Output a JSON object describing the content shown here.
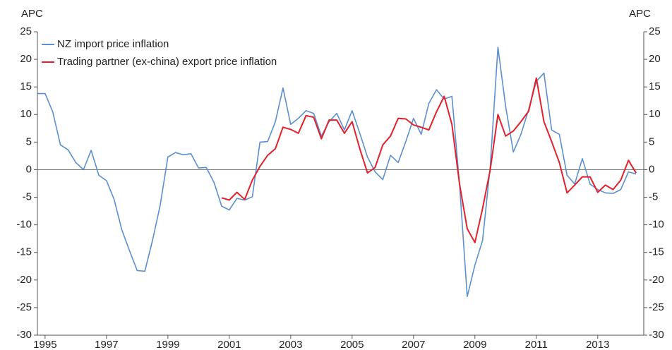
{
  "chart_data": {
    "type": "line",
    "y_label": "APC",
    "y2_label": "APC",
    "x": [
      1994.75,
      1995,
      1995.25,
      1995.5,
      1995.75,
      1996,
      1996.25,
      1996.5,
      1996.75,
      1997,
      1997.25,
      1997.5,
      1997.75,
      1998,
      1998.25,
      1998.5,
      1998.75,
      1999,
      1999.25,
      1999.5,
      1999.75,
      2000,
      2000.25,
      2000.5,
      2000.75,
      2001,
      2001.25,
      2001.5,
      2001.75,
      2002,
      2002.25,
      2002.5,
      2002.75,
      2003,
      2003.25,
      2003.5,
      2003.75,
      2004,
      2004.25,
      2004.5,
      2004.75,
      2005,
      2005.25,
      2005.5,
      2005.75,
      2006,
      2006.25,
      2006.5,
      2006.75,
      2007,
      2007.25,
      2007.5,
      2007.75,
      2008,
      2008.25,
      2008.5,
      2008.75,
      2009,
      2009.25,
      2009.5,
      2009.75,
      2010,
      2010.25,
      2010.5,
      2010.75,
      2011,
      2011.25,
      2011.5,
      2011.75,
      2012,
      2012.25,
      2012.5,
      2012.75,
      2013,
      2013.25,
      2013.5,
      2013.75,
      2014,
      2014.25
    ],
    "series": [
      {
        "name": "NZ import price inflation",
        "color": "#5b8fcf",
        "values": [
          13.8,
          13.8,
          10.5,
          4.5,
          3.6,
          1.3,
          0,
          3.5,
          -1,
          -2,
          -5.4,
          -10.9,
          -14.7,
          -18.3,
          -18.4,
          -12.8,
          -6.4,
          2.3,
          3.1,
          2.7,
          2.9,
          0.3,
          0.4,
          -2.3,
          -6.6,
          -7.3,
          -5.2,
          -5.5,
          -4.9,
          5,
          5.1,
          8.7,
          14.8,
          8.2,
          9.3,
          10.7,
          10.2,
          6.1,
          8.7,
          10.2,
          7.2,
          10.7,
          6.6,
          2.3,
          -0.4,
          -1.8,
          2.6,
          1.3,
          5.1,
          9.3,
          6.4,
          12,
          14.5,
          12.8,
          13.3,
          -2.6,
          -23,
          -17.3,
          -12.8,
          0.6,
          22.2,
          11.5,
          3.2,
          6.4,
          10.9,
          16,
          17.5,
          7.2,
          6.4,
          -1,
          -2.6,
          2,
          -2.6,
          -3.6,
          -4.2,
          -4.3,
          -3.6,
          -0.4,
          -0.8
        ]
      },
      {
        "name": "Trading partner (ex-china) export price inflation",
        "color": "#e3202b",
        "values": [
          null,
          null,
          null,
          null,
          null,
          null,
          null,
          null,
          null,
          null,
          null,
          null,
          null,
          null,
          null,
          null,
          null,
          null,
          null,
          null,
          null,
          null,
          null,
          null,
          -5.1,
          -5.5,
          -4.1,
          -5.4,
          -1.9,
          0.6,
          2.6,
          3.8,
          7.7,
          7.3,
          6.6,
          9.8,
          9.5,
          5.6,
          9,
          9,
          6.6,
          8.7,
          3.8,
          -0.6,
          0.4,
          4.5,
          6.1,
          9.3,
          9.2,
          8.1,
          7.7,
          7.2,
          10.5,
          13.3,
          8.2,
          -2.6,
          -10.7,
          -13.2,
          -7,
          0,
          10,
          6.1,
          7,
          8.7,
          10.6,
          16.6,
          8.7,
          5.1,
          1.3,
          -4.2,
          -2.8,
          -1.3,
          -1.3,
          -4.1,
          -2.8,
          -3.6,
          -1.9,
          1.7,
          -0.6
        ]
      }
    ],
    "xlim": [
      1994.75,
      2014.5
    ],
    "xticks": [
      1995,
      1997,
      1999,
      2001,
      2003,
      2005,
      2007,
      2009,
      2011,
      2013
    ],
    "ylim": [
      -30,
      25
    ],
    "yticks": [
      25,
      20,
      15,
      10,
      5,
      0,
      -5,
      -10,
      -15,
      -20,
      -25,
      -30
    ],
    "y2lim": [
      -30,
      25
    ],
    "y2ticks": [
      25,
      20,
      15,
      10,
      5,
      0,
      -5,
      -10,
      -15,
      -20,
      -25,
      -30
    ],
    "legend": "upper left"
  }
}
